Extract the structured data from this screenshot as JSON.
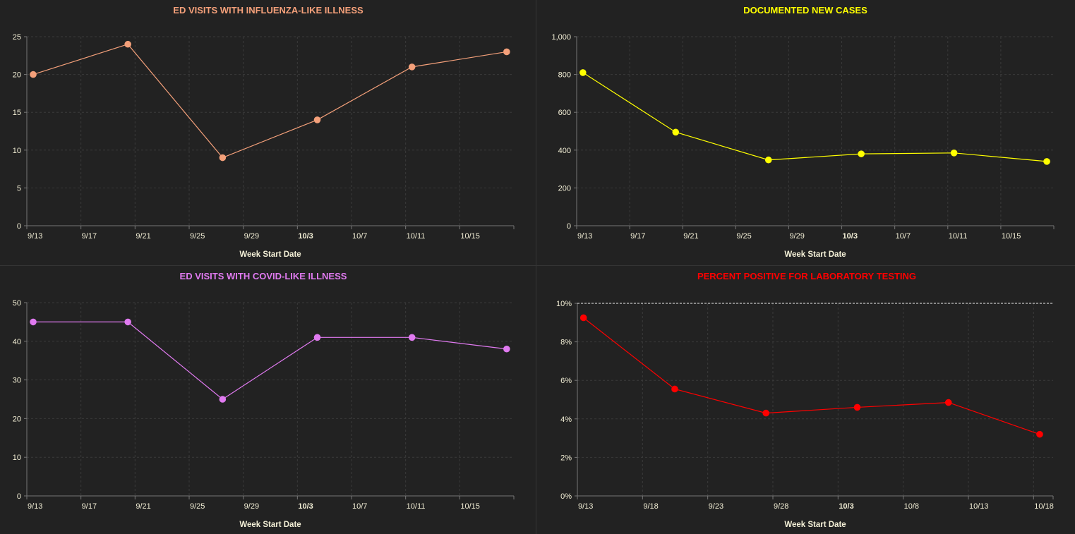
{
  "chart_data": [
    {
      "type": "line",
      "title": "ED VISITS WITH INFLUENZA-LIKE ILLNESS",
      "xlabel": "Week Start Date",
      "ylabel": "",
      "color": "#f4a07a",
      "x": [
        "9/13",
        "9/20",
        "9/27",
        "10/4",
        "10/11",
        "10/18"
      ],
      "values": [
        20,
        24,
        9,
        14,
        21,
        23
      ],
      "ylim": [
        0,
        25
      ],
      "yticks": [
        0,
        5,
        10,
        15,
        20,
        25
      ],
      "ytick_labels": [
        "0",
        "5",
        "10",
        "15",
        "20",
        "25"
      ],
      "xticks": [
        "9/13",
        "9/17",
        "9/21",
        "9/25",
        "9/29",
        "10/3",
        "10/7",
        "10/11",
        "10/15"
      ],
      "grid": true
    },
    {
      "type": "line",
      "title": "DOCUMENTED NEW CASES",
      "xlabel": "Week Start Date",
      "ylabel": "",
      "color": "#ffff00",
      "x": [
        "9/13",
        "9/20",
        "9/27",
        "10/4",
        "10/11",
        "10/18"
      ],
      "values": [
        810,
        495,
        348,
        380,
        385,
        340
      ],
      "ylim": [
        0,
        1000
      ],
      "yticks": [
        0,
        200,
        400,
        600,
        800,
        1000
      ],
      "ytick_labels": [
        "0",
        "200",
        "400",
        "600",
        "800",
        "1,000"
      ],
      "xticks": [
        "9/13",
        "9/17",
        "9/21",
        "9/25",
        "9/29",
        "10/3",
        "10/7",
        "10/11",
        "10/15"
      ],
      "grid": true
    },
    {
      "type": "line",
      "title": "ED VISITS WITH COVID-LIKE ILLNESS",
      "xlabel": "Week Start Date",
      "ylabel": "",
      "color": "#e07af0",
      "x": [
        "9/13",
        "9/20",
        "9/27",
        "10/4",
        "10/11",
        "10/18"
      ],
      "values": [
        45,
        45,
        25,
        41,
        41,
        38
      ],
      "ylim": [
        0,
        50
      ],
      "yticks": [
        0,
        10,
        20,
        30,
        40,
        50
      ],
      "ytick_labels": [
        "0",
        "10",
        "20",
        "30",
        "40",
        "50"
      ],
      "xticks": [
        "9/13",
        "9/17",
        "9/21",
        "9/25",
        "9/29",
        "10/3",
        "10/7",
        "10/11",
        "10/15"
      ],
      "grid": true
    },
    {
      "type": "line",
      "title": "PERCENT POSITIVE FOR LABORATORY TESTING",
      "xlabel": "Week Start Date",
      "ylabel": "",
      "color": "#ff0000",
      "x": [
        "9/13",
        "9/20",
        "9/27",
        "10/4",
        "10/11",
        "10/18"
      ],
      "values": [
        9.25,
        5.55,
        4.3,
        4.6,
        4.85,
        3.2
      ],
      "ylim": [
        0,
        10
      ],
      "yticks": [
        0,
        2,
        4,
        6,
        8,
        10
      ],
      "ytick_labels": [
        "0%",
        "2%",
        "4%",
        "6%",
        "8%",
        "10%"
      ],
      "xticks": [
        "9/13",
        "9/18",
        "9/23",
        "9/28",
        "10/3",
        "10/8",
        "10/13",
        "10/18"
      ],
      "reference_line": 10,
      "grid": true
    }
  ]
}
